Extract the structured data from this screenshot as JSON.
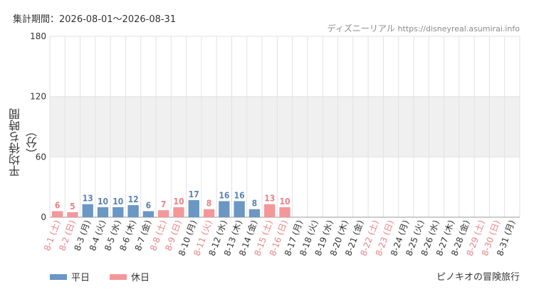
{
  "header": {
    "period_label": "集計期間：2026-08-01～2026-08-31",
    "site_name": "ディズニーリアル",
    "site_url": "https://disneyreal.asumirai.info"
  },
  "footer": {
    "attraction_name": "ピノキオの冒険旅行"
  },
  "colors": {
    "weekday": "#6a97c4",
    "holiday": "#f4979a",
    "weekday_text": "#5b84b0",
    "holiday_text": "#e98286",
    "band": "#f0f0f0",
    "grid": "#e2e2e2"
  },
  "chart_data": {
    "type": "bar",
    "ylabel": "平均待ち時間（分）",
    "ylim": [
      0,
      180
    ],
    "yticks": [
      0,
      60,
      120,
      180
    ],
    "grid": true,
    "legend_position": "bottom-left",
    "legend": [
      {
        "name": "平日",
        "color": "#6a97c4"
      },
      {
        "name": "休日",
        "color": "#f4979a"
      }
    ],
    "categories": [
      "8-1 (土)",
      "8-2 (日)",
      "8-3 (月)",
      "8-4 (火)",
      "8-5 (水)",
      "8-6 (木)",
      "8-7 (金)",
      "8-8 (土)",
      "8-9 (日)",
      "8-10 (月)",
      "8-11 (火)",
      "8-12 (水)",
      "8-13 (木)",
      "8-14 (金)",
      "8-15 (土)",
      "8-16 (日)",
      "8-17 (月)",
      "8-18 (火)",
      "8-19 (水)",
      "8-20 (木)",
      "8-21 (金)",
      "8-22 (土)",
      "8-23 (日)",
      "8-24 (月)",
      "8-25 (火)",
      "8-26 (水)",
      "8-27 (木)",
      "8-28 (金)",
      "8-29 (土)",
      "8-30 (日)",
      "8-31 (月)"
    ],
    "day_types": [
      "holiday",
      "holiday",
      "weekday",
      "weekday",
      "weekday",
      "weekday",
      "weekday",
      "holiday",
      "holiday",
      "weekday",
      "holiday",
      "weekday",
      "weekday",
      "weekday",
      "holiday",
      "holiday",
      "weekday",
      "weekday",
      "weekday",
      "weekday",
      "weekday",
      "holiday",
      "holiday",
      "weekday",
      "weekday",
      "weekday",
      "weekday",
      "weekday",
      "holiday",
      "holiday",
      "weekday"
    ],
    "values": [
      6,
      5,
      13,
      10,
      10,
      12,
      6,
      7,
      10,
      17,
      8,
      16,
      16,
      8,
      13,
      10,
      null,
      null,
      null,
      null,
      null,
      null,
      null,
      null,
      null,
      null,
      null,
      null,
      null,
      null,
      null
    ]
  }
}
